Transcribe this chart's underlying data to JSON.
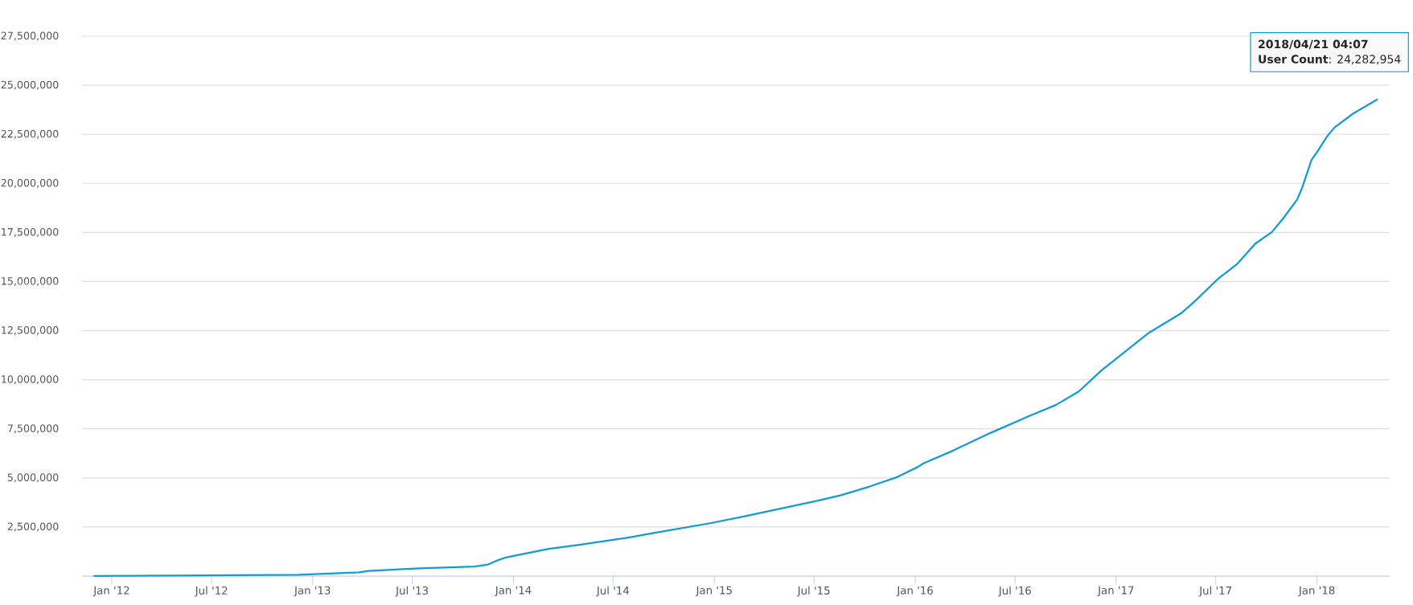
{
  "chart_data": {
    "type": "line",
    "x": [
      "2011-11-29",
      "2012-12-07",
      "2013-03-26",
      "2013-04-12",
      "2013-07-05",
      "2013-10-22",
      "2013-11-16",
      "2013-12-03",
      "2013-12-20",
      "2014-01-23",
      "2014-03-06",
      "2014-05-03",
      "2014-07-26",
      "2014-09-15",
      "2014-12-26",
      "2015-02-23",
      "2015-07-08",
      "2015-08-19",
      "2015-10-09",
      "2015-11-29",
      "2016-01-06",
      "2016-01-15",
      "2016-03-10",
      "2016-05-17",
      "2016-07-24",
      "2016-09-13",
      "2016-10-25",
      "2016-12-06",
      "2017-01-01",
      "2017-03-01",
      "2017-04-29",
      "2017-05-25",
      "2017-07-06",
      "2017-08-08",
      "2017-09-11",
      "2017-10-11",
      "2017-11-01",
      "2017-11-26",
      "2017-12-05",
      "2017-12-22",
      "2018-01-03",
      "2018-01-20",
      "2018-02-02",
      "2018-03-08",
      "2018-04-21T04:07"
    ],
    "values": [
      0,
      70000,
      190000,
      260000,
      380000,
      490000,
      590000,
      800000,
      960000,
      1150000,
      1390000,
      1600000,
      1950000,
      2200000,
      2700000,
      3030000,
      3840000,
      4120000,
      4550000,
      5040000,
      5560000,
      5730000,
      6390000,
      7290000,
      8120000,
      8710000,
      9400000,
      10490000,
      11060000,
      12380000,
      13380000,
      14020000,
      15160000,
      15870000,
      16930000,
      17520000,
      18230000,
      19180000,
      19770000,
      21190000,
      21670000,
      22420000,
      22850000,
      23560000,
      24282954
    ],
    "color": "#139bd6",
    "xlim": [
      "2011-11-08",
      "2018-05-13"
    ],
    "xticks": [
      {
        "value": "2012-01-01",
        "label": "Jan '12"
      },
      {
        "value": "2012-07-01",
        "label": "Jul '12"
      },
      {
        "value": "2013-01-01",
        "label": "Jan '13"
      },
      {
        "value": "2013-07-01",
        "label": "Jul '13"
      },
      {
        "value": "2014-01-01",
        "label": "Jan '14"
      },
      {
        "value": "2014-07-01",
        "label": "Jul '14"
      },
      {
        "value": "2015-01-01",
        "label": "Jan '15"
      },
      {
        "value": "2015-07-01",
        "label": "Jul '15"
      },
      {
        "value": "2016-01-01",
        "label": "Jan '16"
      },
      {
        "value": "2016-07-01",
        "label": "Jul '16"
      },
      {
        "value": "2017-01-01",
        "label": "Jan '17"
      },
      {
        "value": "2017-07-01",
        "label": "Jul '17"
      },
      {
        "value": "2018-01-01",
        "label": "Jan '18"
      }
    ],
    "ylim": [
      0,
      27500000
    ],
    "yticks": [
      {
        "value": 2500000,
        "label": "2,500,000"
      },
      {
        "value": 5000000,
        "label": "5,000,000"
      },
      {
        "value": 7500000,
        "label": "7,500,000"
      },
      {
        "value": 10000000,
        "label": "10,000,000"
      },
      {
        "value": 12500000,
        "label": "12,500,000"
      },
      {
        "value": 15000000,
        "label": "15,000,000"
      },
      {
        "value": 17500000,
        "label": "17,500,000"
      },
      {
        "value": 20000000,
        "label": "20,000,000"
      },
      {
        "value": 22500000,
        "label": "22,500,000"
      },
      {
        "value": 25000000,
        "label": "25,000,000"
      },
      {
        "value": 27500000,
        "label": "27,500,000"
      }
    ],
    "grid": "y",
    "annotations": [
      "**2018/04/21 04:07**",
      "**User Count**: 24,282,954"
    ]
  }
}
